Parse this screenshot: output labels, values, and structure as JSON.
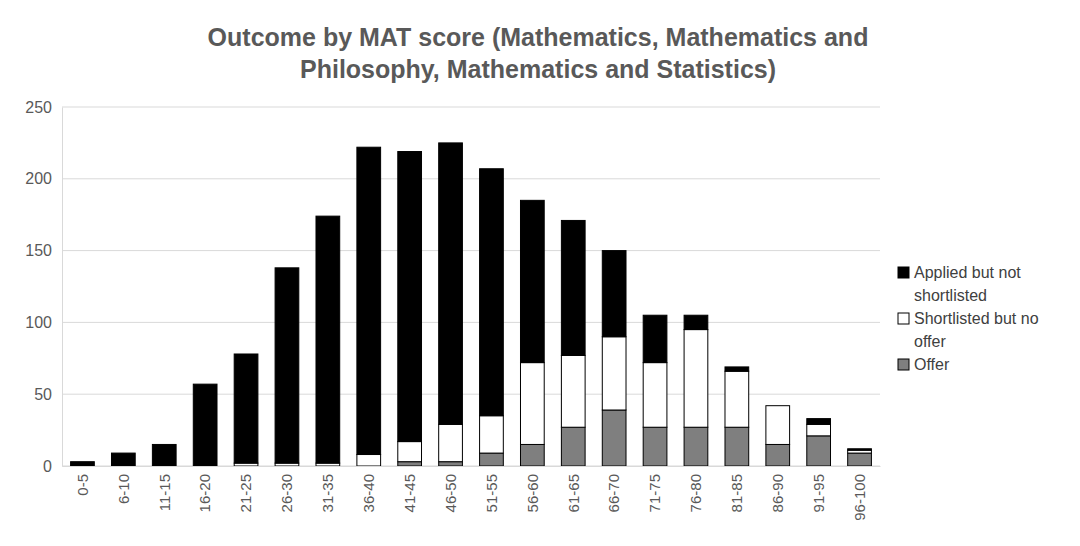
{
  "chart_data": {
    "type": "bar",
    "stacked": true,
    "grid": true,
    "legend": "right",
    "title": "Outcome by MAT score (Mathematics, Mathematics and Philosophy, Mathematics and Statistics)",
    "categories": [
      "0-5",
      "6-10",
      "11-15",
      "16-20",
      "21-25",
      "26-30",
      "31-35",
      "36-40",
      "41-45",
      "46-50",
      "51-55",
      "56-60",
      "61-65",
      "66-70",
      "71-75",
      "76-80",
      "81-85",
      "86-90",
      "91-95",
      "96-100"
    ],
    "series": [
      {
        "name": "Applied but not shortlisted",
        "color": "#000000",
        "values": [
          3,
          9,
          15,
          57,
          76,
          136,
          172,
          214,
          202,
          196,
          172,
          113,
          94,
          60,
          33,
          10,
          3,
          0,
          4,
          1
        ]
      },
      {
        "name": "Shortlisted but no offer",
        "color": "#ffffff",
        "values": [
          0,
          0,
          0,
          0,
          2,
          2,
          2,
          8,
          14,
          26,
          26,
          57,
          50,
          51,
          45,
          68,
          39,
          27,
          8,
          2
        ]
      },
      {
        "name": "Offer",
        "color": "#7f7f7f",
        "values": [
          0,
          0,
          0,
          0,
          0,
          0,
          0,
          0,
          3,
          3,
          9,
          15,
          27,
          39,
          27,
          27,
          27,
          15,
          21,
          9
        ]
      }
    ],
    "ylim": [
      0,
      250
    ],
    "yticks": [
      0,
      50,
      100,
      150,
      200,
      250
    ]
  }
}
